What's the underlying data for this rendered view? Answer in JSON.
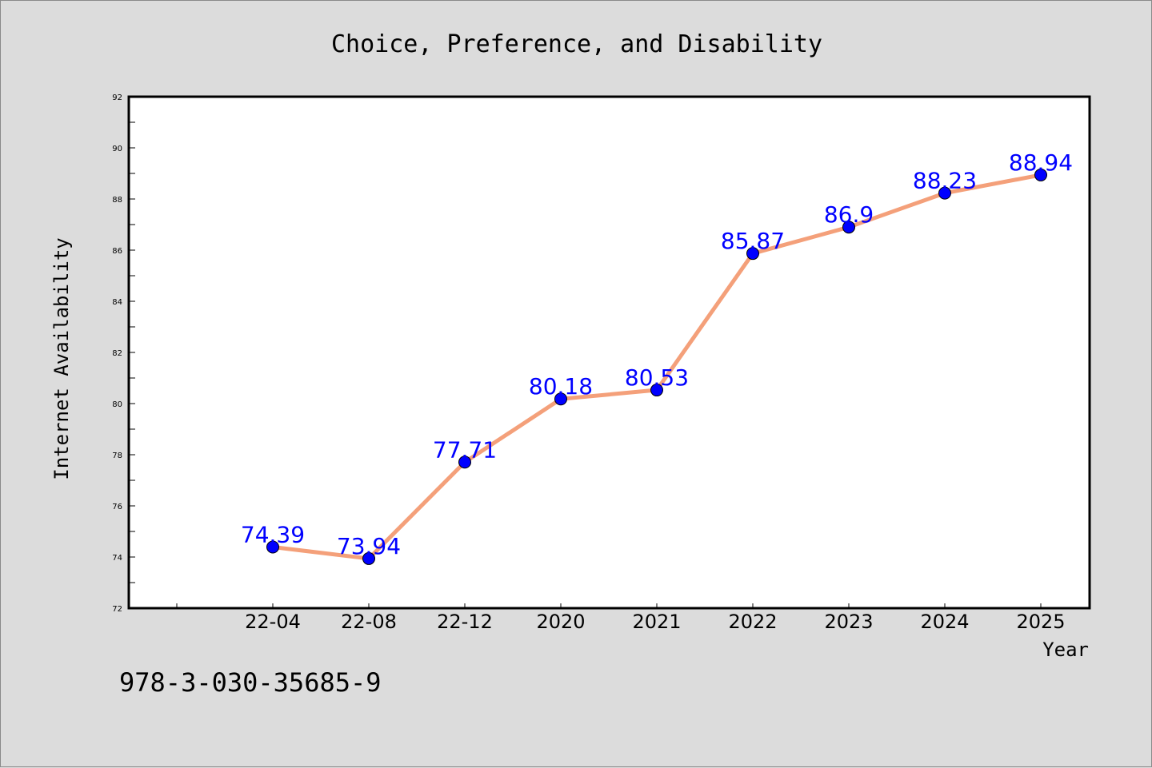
{
  "footer": {
    "code": "978-3-030-35685-9"
  },
  "chart_data": {
    "type": "line",
    "title": "Choice, Preference, and Disability",
    "xlabel": "Year",
    "ylabel": "Internet Availability",
    "categories": [
      "22-04",
      "22-08",
      "22-12",
      "2020",
      "2021",
      "2022",
      "2023",
      "2024",
      "2025"
    ],
    "values": [
      74.39,
      73.94,
      77.71,
      80.18,
      80.53,
      85.87,
      86.9,
      88.23,
      88.94
    ],
    "data_labels": [
      "74.39",
      "73.94",
      "77.71",
      "80.18",
      "80.53",
      "85.87",
      "86.9",
      "88.23",
      "88.94"
    ],
    "ylim": [
      72,
      92
    ],
    "yticks": [
      72,
      74,
      76,
      78,
      80,
      82,
      84,
      86,
      88,
      90,
      92
    ],
    "grid": false,
    "colors": {
      "line": "#f4a07a",
      "marker": "#0000ff",
      "label": "#0000ff",
      "background": "#dcdcdc",
      "plot_background": "#ffffff"
    }
  }
}
